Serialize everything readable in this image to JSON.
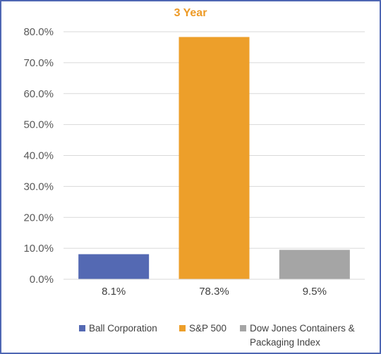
{
  "chart_data": {
    "type": "bar",
    "title": "3 Year",
    "categories": [
      "Ball Corporation",
      "S&P 500",
      "Dow Jones Containers & Packaging Index"
    ],
    "values": [
      8.1,
      78.3,
      9.5
    ],
    "data_labels": [
      "8.1%",
      "78.3%",
      "9.5%"
    ],
    "colors": [
      "#5469b3",
      "#ed9f2a",
      "#a5a5a5"
    ],
    "ylim": [
      0,
      80
    ],
    "yticks": [
      0,
      10,
      20,
      30,
      40,
      50,
      60,
      70,
      80
    ],
    "ytick_labels": [
      "0.0%",
      "10.0%",
      "20.0%",
      "30.0%",
      "40.0%",
      "50.0%",
      "60.0%",
      "70.0%",
      "80.0%"
    ],
    "grid": true,
    "legend_position": "bottom",
    "legend": [
      {
        "label_lines": [
          "Ball Corporation"
        ]
      },
      {
        "label_lines": [
          "S&P 500"
        ]
      },
      {
        "label_lines": [
          "Dow Jones Containers &",
          "Packaging Index"
        ]
      }
    ]
  }
}
